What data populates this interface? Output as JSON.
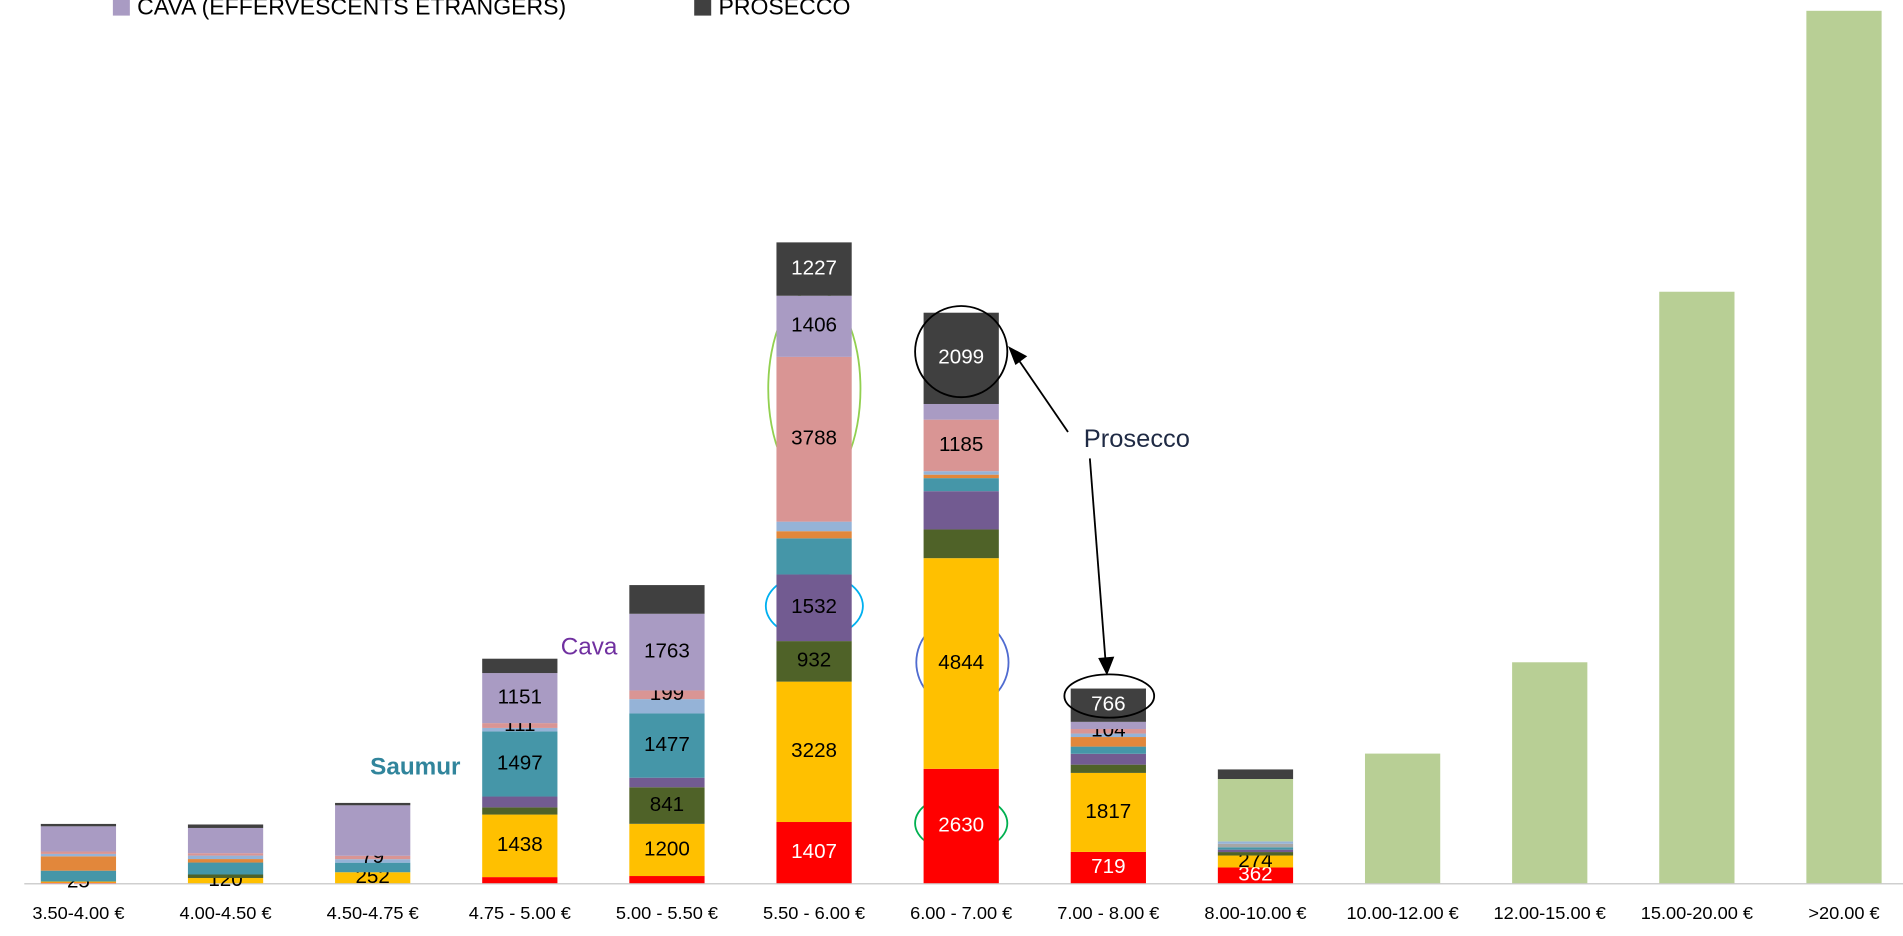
{
  "chart_data": {
    "type": "stacked-bar",
    "categories": [
      "3.50-4.00 €",
      "4.00-4.50 €",
      "4.50-4.75 €",
      "4.75 - 5.00 €",
      "5.00 - 5.50 €",
      "5.50 - 6.00 €",
      "6.00 - 7.00 €",
      "7.00 - 8.00 €",
      "8.00-10.00 €",
      "10.00-12.00 €",
      "12.00-15.00 €",
      "15.00-20.00 €",
      ">20.00 €"
    ],
    "series": [
      {
        "color": "#ff0000",
        "values": [
          13,
          0,
          0,
          140,
          165,
          1407,
          2630,
          719,
          362,
          0,
          0,
          0,
          0
        ],
        "labeled": [
          0,
          5,
          6,
          7,
          8
        ]
      },
      {
        "color": "#ffc000",
        "values": [
          25,
          120,
          252,
          1438,
          1200,
          3228,
          4844,
          1817,
          274,
          0,
          0,
          0,
          0
        ],
        "labeled": [
          0,
          1,
          2,
          3,
          4,
          5,
          6,
          7,
          8
        ]
      },
      {
        "color": "#4f6228",
        "values": [
          0,
          80,
          0,
          165,
          841,
          932,
          660,
          190,
          80,
          0,
          0,
          0,
          0
        ],
        "labeled": [
          4,
          5
        ]
      },
      {
        "color": "#725b91",
        "values": [
          0,
          0,
          0,
          250,
          220,
          1532,
          880,
          250,
          55,
          0,
          0,
          0,
          0
        ],
        "labeled": [
          5
        ]
      },
      {
        "color": "#4596a8",
        "values": [
          250,
          275,
          220,
          1497,
          1477,
          830,
          300,
          165,
          55,
          0,
          0,
          0,
          0
        ],
        "labeled": [
          3,
          4
        ]
      },
      {
        "color": "#a6a6a6",
        "values": [
          0,
          0,
          0,
          0,
          0,
          0,
          0,
          0,
          80,
          0,
          0,
          0,
          0
        ],
        "labeled": []
      },
      {
        "color": "#e2873b",
        "values": [
          330,
          80,
          0,
          0,
          0,
          165,
          80,
          220,
          0,
          0,
          0,
          0,
          0
        ],
        "labeled": []
      },
      {
        "color": "#95b3d7",
        "values": [
          55,
          80,
          80,
          80,
          330,
          220,
          80,
          80,
          55,
          0,
          0,
          0,
          0
        ],
        "labeled": []
      },
      {
        "color": "#d99594",
        "values": [
          55,
          55,
          79,
          111,
          199,
          3788,
          1185,
          104,
          0,
          0,
          0,
          0,
          0
        ],
        "labeled": [
          2,
          3,
          4,
          5,
          6,
          7
        ]
      },
      {
        "name": "CAVA (EFFERVESCENTS ETRANGERS)",
        "color": "#a99bc3",
        "values": [
          580,
          580,
          1160,
          1151,
          1763,
          1406,
          360,
          165,
          0,
          0,
          0,
          0,
          0
        ],
        "labeled": [
          3,
          4,
          5
        ]
      },
      {
        "color": "#b8cf95",
        "values": [
          0,
          0,
          0,
          0,
          0,
          0,
          0,
          0,
          1435,
          2980,
          5080,
          13600,
          20060
        ],
        "labeled": []
      },
      {
        "name": "PROSECCO",
        "color": "#404040",
        "values": [
          55,
          80,
          55,
          330,
          660,
          1227,
          2099,
          766,
          220,
          0,
          0,
          0,
          0
        ],
        "labeled": [
          5,
          6,
          7
        ]
      }
    ],
    "annotations": [
      "Cava",
      "Saumur",
      "Prosecco"
    ]
  }
}
